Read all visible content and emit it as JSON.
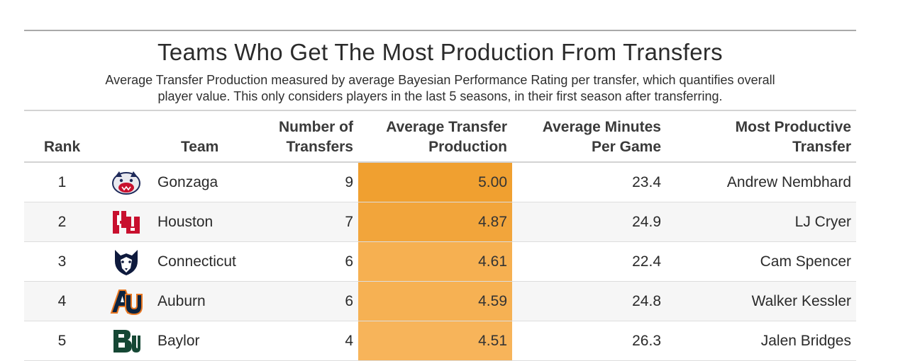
{
  "chart_data": {
    "type": "table",
    "title": "Teams Who Get The Most Production From Transfers",
    "subtitle_line1": "Average Transfer Production measured by average Bayesian Performance Rating per transfer, which quantifies overall",
    "subtitle_line2": "player value. This only considers players in the last 5 seasons, in their first season after transferring.",
    "columns": {
      "rank": "Rank",
      "team": "Team",
      "count_line1": "Number of",
      "count_line2": "Transfers",
      "prod_line1": "Average Transfer",
      "prod_line2": "Production",
      "mins_line1": "Average Minutes",
      "mins_line2": "Per Game",
      "best_line1": "Most Productive",
      "best_line2": "Transfer"
    },
    "rows": [
      {
        "rank": "1",
        "team": "Gonzaga",
        "logo": "gonzaga-bulldog-logo",
        "transfers": "9",
        "production": "5.00",
        "production_value": 5.0,
        "minutes": "23.4",
        "best_transfer": "Andrew Nembhard"
      },
      {
        "rank": "2",
        "team": "Houston",
        "logo": "houston-uh-logo",
        "transfers": "7",
        "production": "4.87",
        "production_value": 4.87,
        "minutes": "24.9",
        "best_transfer": "LJ Cryer"
      },
      {
        "rank": "3",
        "team": "Connecticut",
        "logo": "uconn-husky-logo",
        "transfers": "6",
        "production": "4.61",
        "production_value": 4.61,
        "minutes": "22.4",
        "best_transfer": "Cam Spencer"
      },
      {
        "rank": "4",
        "team": "Auburn",
        "logo": "auburn-au-logo",
        "transfers": "6",
        "production": "4.59",
        "production_value": 4.59,
        "minutes": "24.8",
        "best_transfer": "Walker Kessler"
      },
      {
        "rank": "5",
        "team": "Baylor",
        "logo": "baylor-bu-logo",
        "transfers": "4",
        "production": "4.51",
        "production_value": 4.51,
        "minutes": "26.3",
        "best_transfer": "Jalen Bridges"
      }
    ],
    "color_scale": {
      "high": "#f0a030",
      "low": "#f7b45a"
    }
  }
}
